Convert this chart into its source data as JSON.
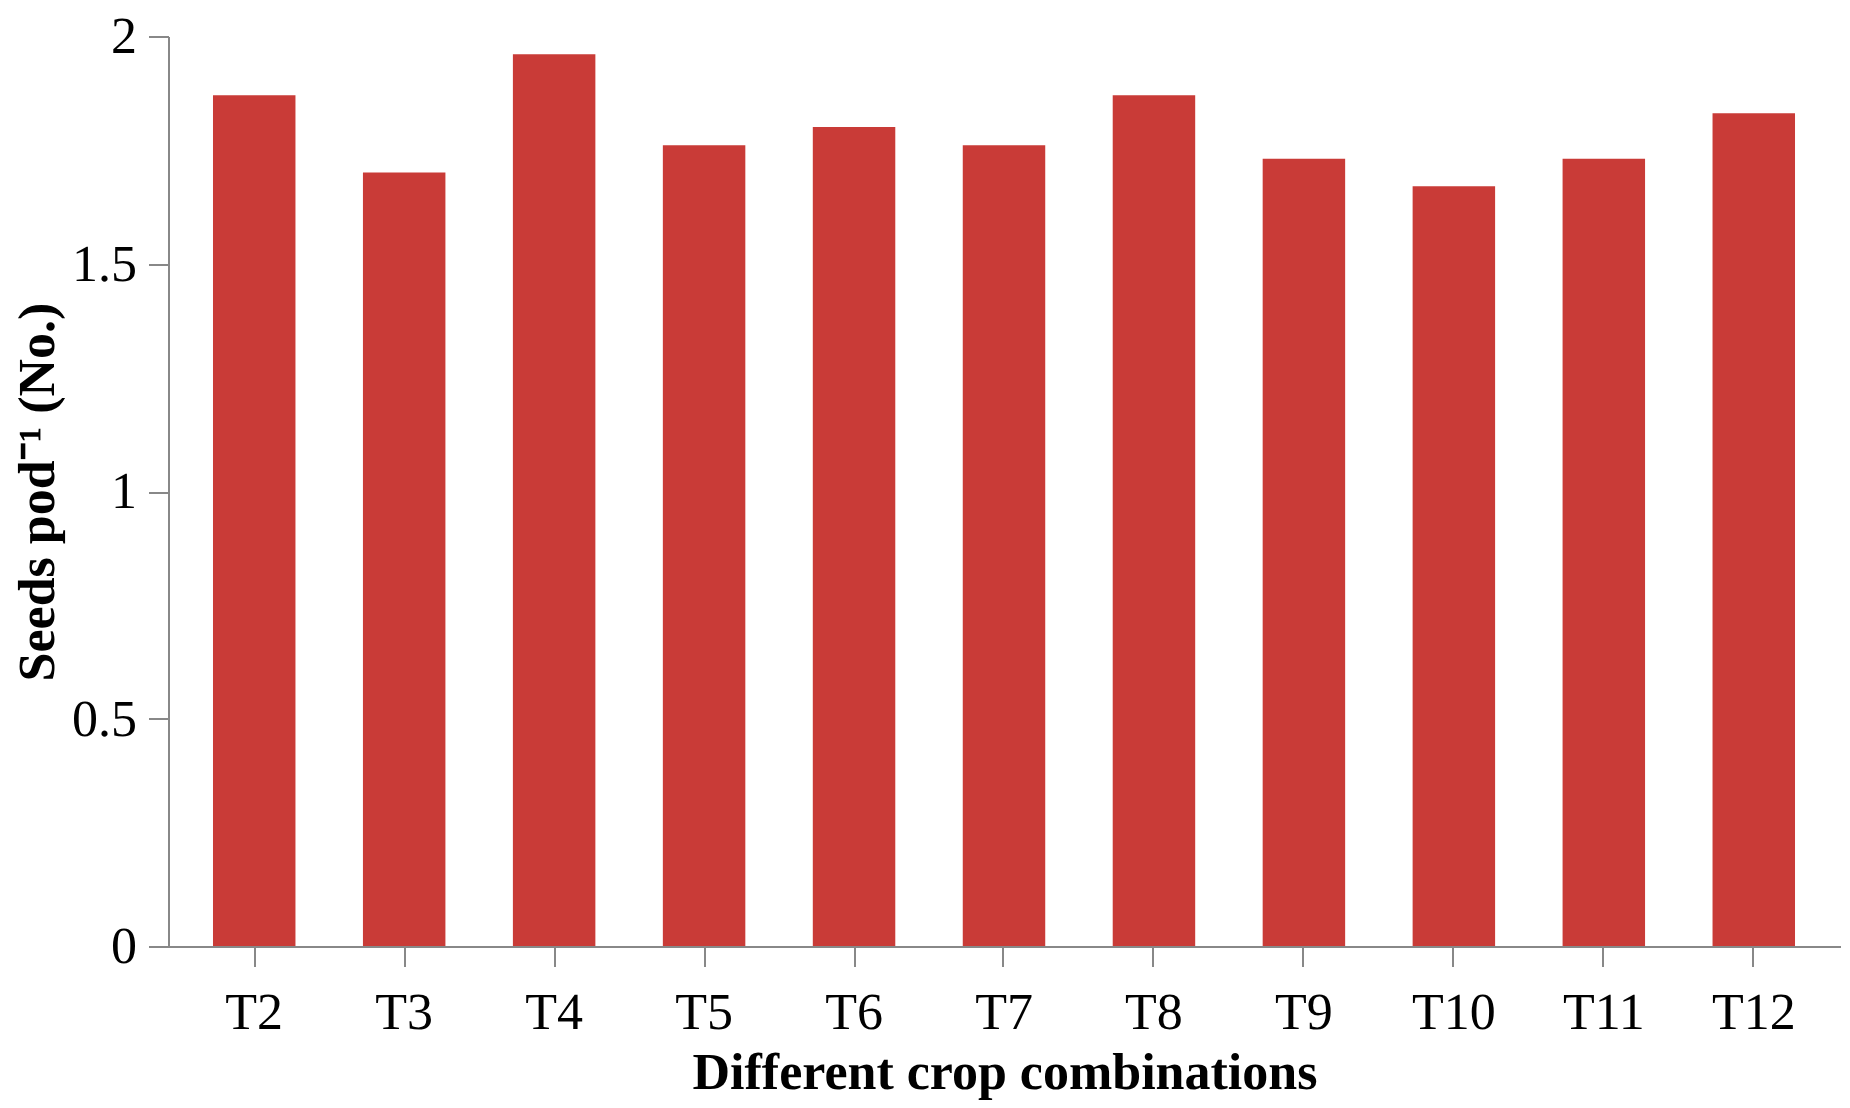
{
  "chart_data": {
    "type": "bar",
    "xlabel": "Different crop combinations",
    "ylabel": "Seeds pod⁻¹ (No.)",
    "categories": [
      "T2",
      "T3",
      "T4",
      "T5",
      "T6",
      "T7",
      "T8",
      "T9",
      "T10",
      "T11",
      "T12"
    ],
    "values": [
      1.87,
      1.7,
      1.96,
      1.76,
      1.8,
      1.76,
      1.87,
      1.73,
      1.67,
      1.73,
      1.83
    ],
    "color": "#c93b37",
    "ylim": [
      0,
      2
    ],
    "yticks": [
      0,
      0.5,
      1,
      1.5,
      2
    ],
    "grid": false
  }
}
